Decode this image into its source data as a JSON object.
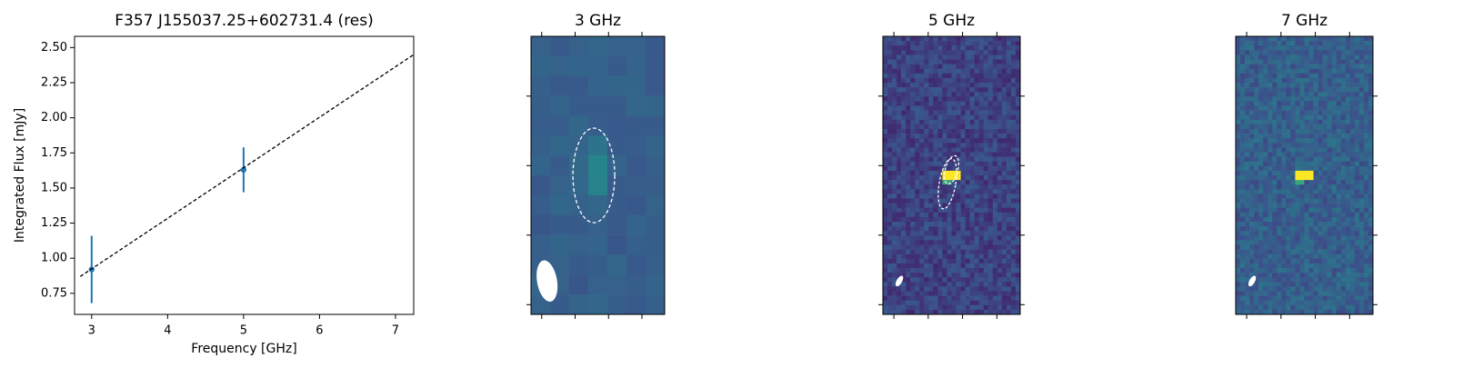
{
  "chart_data": [
    {
      "type": "errorbar",
      "title": "F357 J155037.25+602731.4 (res)",
      "xlabel": "Frequency [GHz]",
      "ylabel": "Integrated Flux [mJy]",
      "xlim": [
        2.775,
        7.24
      ],
      "ylim": [
        0.6,
        2.58
      ],
      "xticks": [
        3,
        4,
        5,
        6,
        7
      ],
      "yticks": [
        0.75,
        {
          "value": 1.0,
          "label": "1.00"
        },
        1.25,
        {
          "value": 1.5,
          "label": "1.50"
        },
        1.75,
        {
          "value": 2.0,
          "label": "2.00"
        },
        2.25,
        {
          "value": 2.5,
          "label": "2.50"
        }
      ],
      "series": [
        {
          "type": "errorbar",
          "x": [
            3,
            5
          ],
          "values": [
            0.92,
            1.63
          ],
          "errors": [
            0.24,
            0.16
          ],
          "color": "#1f77b4"
        },
        {
          "type": "line",
          "x": [
            2.85,
            7.24
          ],
          "values": [
            0.87,
            2.45
          ],
          "color": "#000000",
          "dashed": true
        }
      ]
    },
    {
      "type": "image",
      "title": "3 GHz"
    },
    {
      "type": "image",
      "title": "5 GHz"
    },
    {
      "type": "image",
      "title": "7 GHz"
    }
  ]
}
